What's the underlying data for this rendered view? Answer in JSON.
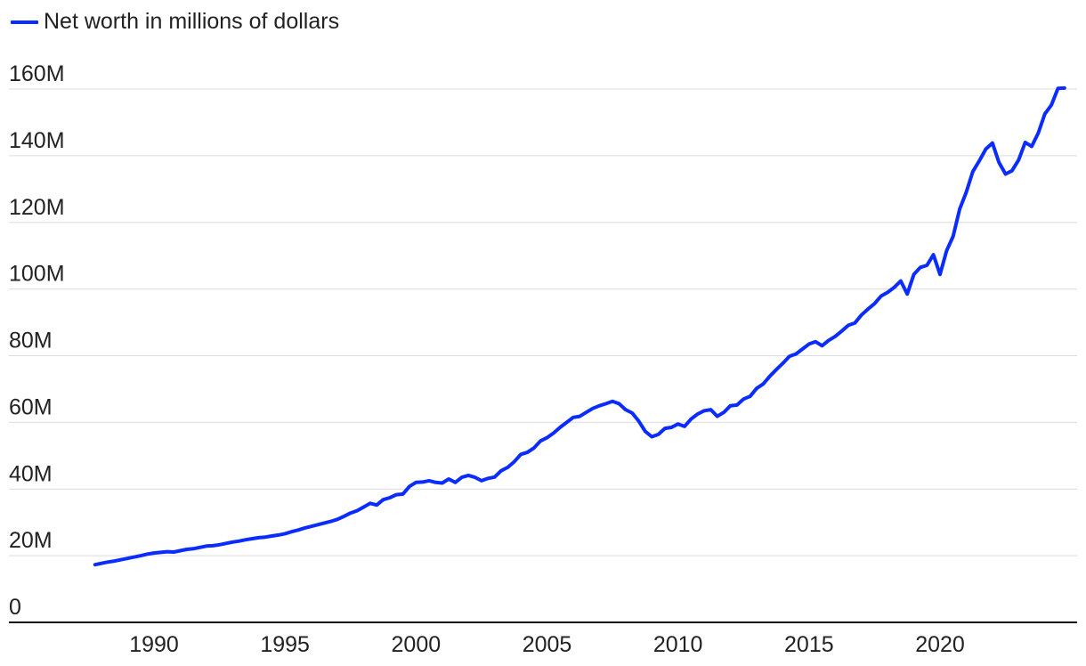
{
  "chart_data": {
    "type": "line",
    "title": "",
    "xlabel": "",
    "ylabel": "",
    "ylim": [
      0,
      160
    ],
    "xlim": [
      1987.5,
      2024.75
    ],
    "y_ticks": [
      0,
      20,
      40,
      60,
      80,
      100,
      120,
      140,
      160
    ],
    "y_tick_labels": [
      "0",
      "20M",
      "40M",
      "60M",
      "80M",
      "100M",
      "120M",
      "140M",
      "160M"
    ],
    "x_ticks": [
      1990,
      1995,
      2000,
      2005,
      2010,
      2015,
      2020
    ],
    "x_tick_labels": [
      "1990",
      "1995",
      "2000",
      "2005",
      "2010",
      "2015",
      "2020"
    ],
    "grid": "horizontal",
    "legend_position": "top-left",
    "series": [
      {
        "name": "Net worth in millions of dollars",
        "color": "#0a2cff",
        "points": [
          [
            1987.75,
            17.3
          ],
          [
            1988.0,
            17.7
          ],
          [
            1988.25,
            18.1
          ],
          [
            1988.5,
            18.4
          ],
          [
            1988.75,
            18.8
          ],
          [
            1989.0,
            19.2
          ],
          [
            1989.25,
            19.6
          ],
          [
            1989.5,
            20.0
          ],
          [
            1989.75,
            20.5
          ],
          [
            1990.0,
            20.8
          ],
          [
            1990.25,
            21.0
          ],
          [
            1990.5,
            21.2
          ],
          [
            1990.75,
            21.1
          ],
          [
            1991.0,
            21.5
          ],
          [
            1991.25,
            21.9
          ],
          [
            1991.5,
            22.1
          ],
          [
            1991.75,
            22.5
          ],
          [
            1992.0,
            22.9
          ],
          [
            1992.25,
            23.0
          ],
          [
            1992.5,
            23.3
          ],
          [
            1992.75,
            23.7
          ],
          [
            1993.0,
            24.1
          ],
          [
            1993.25,
            24.4
          ],
          [
            1993.5,
            24.8
          ],
          [
            1993.75,
            25.1
          ],
          [
            1994.0,
            25.4
          ],
          [
            1994.25,
            25.6
          ],
          [
            1994.5,
            25.9
          ],
          [
            1994.75,
            26.2
          ],
          [
            1995.0,
            26.6
          ],
          [
            1995.25,
            27.2
          ],
          [
            1995.5,
            27.7
          ],
          [
            1995.75,
            28.3
          ],
          [
            1996.0,
            28.8
          ],
          [
            1996.25,
            29.3
          ],
          [
            1996.5,
            29.8
          ],
          [
            1996.75,
            30.3
          ],
          [
            1997.0,
            30.9
          ],
          [
            1997.25,
            31.8
          ],
          [
            1997.5,
            32.8
          ],
          [
            1997.75,
            33.5
          ],
          [
            1998.0,
            34.6
          ],
          [
            1998.25,
            35.7
          ],
          [
            1998.5,
            35.2
          ],
          [
            1998.75,
            36.8
          ],
          [
            1999.0,
            37.4
          ],
          [
            1999.25,
            38.3
          ],
          [
            1999.5,
            38.5
          ],
          [
            1999.75,
            40.8
          ],
          [
            2000.0,
            42.0
          ],
          [
            2000.25,
            42.1
          ],
          [
            2000.5,
            42.5
          ],
          [
            2000.75,
            42.0
          ],
          [
            2001.0,
            41.8
          ],
          [
            2001.25,
            43.0
          ],
          [
            2001.5,
            42.0
          ],
          [
            2001.75,
            43.5
          ],
          [
            2002.0,
            44.1
          ],
          [
            2002.25,
            43.5
          ],
          [
            2002.5,
            42.5
          ],
          [
            2002.75,
            43.2
          ],
          [
            2003.0,
            43.6
          ],
          [
            2003.25,
            45.5
          ],
          [
            2003.5,
            46.5
          ],
          [
            2003.75,
            48.2
          ],
          [
            2004.0,
            50.4
          ],
          [
            2004.25,
            51.0
          ],
          [
            2004.5,
            52.3
          ],
          [
            2004.75,
            54.4
          ],
          [
            2005.0,
            55.4
          ],
          [
            2005.25,
            56.8
          ],
          [
            2005.5,
            58.5
          ],
          [
            2005.75,
            60.0
          ],
          [
            2006.0,
            61.5
          ],
          [
            2006.25,
            61.8
          ],
          [
            2006.5,
            63.0
          ],
          [
            2006.75,
            64.2
          ],
          [
            2007.0,
            65.0
          ],
          [
            2007.25,
            65.6
          ],
          [
            2007.5,
            66.3
          ],
          [
            2007.75,
            65.6
          ],
          [
            2008.0,
            63.8
          ],
          [
            2008.25,
            62.8
          ],
          [
            2008.5,
            60.4
          ],
          [
            2008.75,
            57.3
          ],
          [
            2009.0,
            55.7
          ],
          [
            2009.25,
            56.4
          ],
          [
            2009.5,
            58.2
          ],
          [
            2009.75,
            58.5
          ],
          [
            2010.0,
            59.5
          ],
          [
            2010.25,
            58.8
          ],
          [
            2010.5,
            61.0
          ],
          [
            2010.75,
            62.5
          ],
          [
            2011.0,
            63.5
          ],
          [
            2011.25,
            63.8
          ],
          [
            2011.5,
            61.8
          ],
          [
            2011.75,
            63.0
          ],
          [
            2012.0,
            65.0
          ],
          [
            2012.25,
            65.2
          ],
          [
            2012.5,
            67.0
          ],
          [
            2012.75,
            67.8
          ],
          [
            2013.0,
            70.2
          ],
          [
            2013.25,
            71.5
          ],
          [
            2013.5,
            73.8
          ],
          [
            2013.75,
            75.8
          ],
          [
            2014.0,
            77.7
          ],
          [
            2014.25,
            79.8
          ],
          [
            2014.5,
            80.5
          ],
          [
            2014.75,
            82.0
          ],
          [
            2015.0,
            83.5
          ],
          [
            2015.25,
            84.2
          ],
          [
            2015.5,
            83.0
          ],
          [
            2015.75,
            84.6
          ],
          [
            2016.0,
            85.8
          ],
          [
            2016.25,
            87.4
          ],
          [
            2016.5,
            89.1
          ],
          [
            2016.75,
            89.8
          ],
          [
            2017.0,
            92.2
          ],
          [
            2017.25,
            94.0
          ],
          [
            2017.5,
            95.6
          ],
          [
            2017.75,
            97.9
          ],
          [
            2018.0,
            99.0
          ],
          [
            2018.25,
            100.5
          ],
          [
            2018.5,
            102.4
          ],
          [
            2018.75,
            98.5
          ],
          [
            2019.0,
            104.4
          ],
          [
            2019.25,
            106.5
          ],
          [
            2019.5,
            107.1
          ],
          [
            2019.75,
            110.3
          ],
          [
            2020.0,
            104.4
          ],
          [
            2020.25,
            111.5
          ],
          [
            2020.5,
            115.8
          ],
          [
            2020.75,
            124.0
          ],
          [
            2021.0,
            129.0
          ],
          [
            2021.25,
            135.2
          ],
          [
            2021.5,
            138.5
          ],
          [
            2021.75,
            142.0
          ],
          [
            2022.0,
            143.8
          ],
          [
            2022.25,
            138.0
          ],
          [
            2022.5,
            134.5
          ],
          [
            2022.75,
            135.5
          ],
          [
            2023.0,
            138.7
          ],
          [
            2023.25,
            144.0
          ],
          [
            2023.5,
            142.8
          ],
          [
            2023.75,
            146.8
          ],
          [
            2024.0,
            152.5
          ],
          [
            2024.25,
            155.2
          ],
          [
            2024.5,
            160.2
          ],
          [
            2024.75,
            160.3
          ]
        ]
      }
    ]
  }
}
